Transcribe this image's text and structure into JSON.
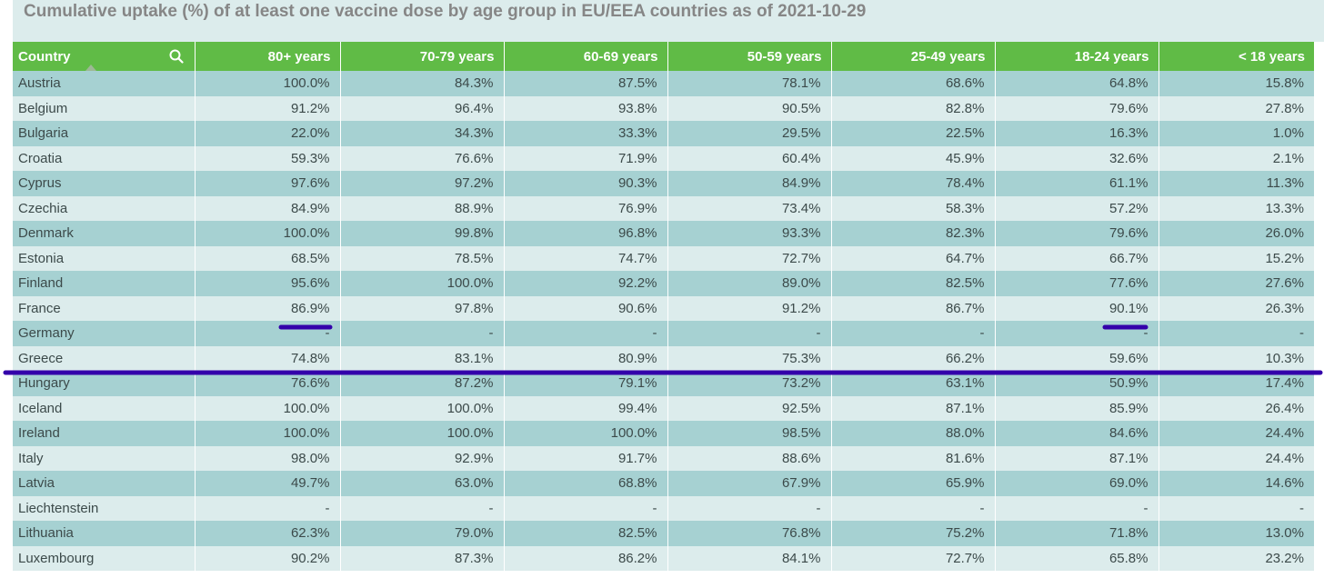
{
  "chart_data": {
    "type": "table",
    "title": "Cumulative uptake (%) of at least one vaccine dose by age group in EU/EEA countries as of 2021-10-29",
    "columns": [
      "Country",
      "80+ years",
      "70-79 years",
      "60-69 years",
      "50-59 years",
      "25-49 years",
      "18-24 years",
      "< 18 years"
    ],
    "rows": [
      [
        "Austria",
        "100.0%",
        "84.3%",
        "87.5%",
        "78.1%",
        "68.6%",
        "64.8%",
        "15.8%"
      ],
      [
        "Belgium",
        "91.2%",
        "96.4%",
        "93.8%",
        "90.5%",
        "82.8%",
        "79.6%",
        "27.8%"
      ],
      [
        "Bulgaria",
        "22.0%",
        "34.3%",
        "33.3%",
        "29.5%",
        "22.5%",
        "16.3%",
        "1.0%"
      ],
      [
        "Croatia",
        "59.3%",
        "76.6%",
        "71.9%",
        "60.4%",
        "45.9%",
        "32.6%",
        "2.1%"
      ],
      [
        "Cyprus",
        "97.6%",
        "97.2%",
        "90.3%",
        "84.9%",
        "78.4%",
        "61.1%",
        "11.3%"
      ],
      [
        "Czechia",
        "84.9%",
        "88.9%",
        "76.9%",
        "73.4%",
        "58.3%",
        "57.2%",
        "13.3%"
      ],
      [
        "Denmark",
        "100.0%",
        "99.8%",
        "96.8%",
        "93.3%",
        "82.3%",
        "79.6%",
        "26.0%"
      ],
      [
        "Estonia",
        "68.5%",
        "78.5%",
        "74.7%",
        "72.7%",
        "64.7%",
        "66.7%",
        "15.2%"
      ],
      [
        "Finland",
        "95.6%",
        "100.0%",
        "92.2%",
        "89.0%",
        "82.5%",
        "77.6%",
        "27.6%"
      ],
      [
        "France",
        "86.9%",
        "97.8%",
        "90.6%",
        "91.2%",
        "86.7%",
        "90.1%",
        "26.3%"
      ],
      [
        "Germany",
        "-",
        "-",
        "-",
        "-",
        "-",
        "-",
        "-"
      ],
      [
        "Greece",
        "74.8%",
        "83.1%",
        "80.9%",
        "75.3%",
        "66.2%",
        "59.6%",
        "10.3%"
      ],
      [
        "Hungary",
        "76.6%",
        "87.2%",
        "79.1%",
        "73.2%",
        "63.1%",
        "50.9%",
        "17.4%"
      ],
      [
        "Iceland",
        "100.0%",
        "100.0%",
        "99.4%",
        "92.5%",
        "87.1%",
        "85.9%",
        "26.4%"
      ],
      [
        "Ireland",
        "100.0%",
        "100.0%",
        "100.0%",
        "98.5%",
        "88.0%",
        "84.6%",
        "24.4%"
      ],
      [
        "Italy",
        "98.0%",
        "92.9%",
        "91.7%",
        "88.6%",
        "81.6%",
        "87.1%",
        "24.4%"
      ],
      [
        "Latvia",
        "49.7%",
        "63.0%",
        "68.8%",
        "67.9%",
        "65.9%",
        "69.0%",
        "14.6%"
      ],
      [
        "Liechtenstein",
        "-",
        "-",
        "-",
        "-",
        "-",
        "-",
        "-"
      ],
      [
        "Lithuania",
        "62.3%",
        "79.0%",
        "82.5%",
        "76.8%",
        "75.2%",
        "71.8%",
        "13.0%"
      ],
      [
        "Luxembourg",
        "90.2%",
        "87.3%",
        "86.2%",
        "84.1%",
        "72.7%",
        "65.8%",
        "23.2%"
      ]
    ]
  },
  "colors": {
    "header_bg": "#60bb46",
    "row_odd": "#a6d1d2",
    "row_even": "#dcecec",
    "annotation": "#3300aa"
  },
  "icons": {
    "search": "search-icon",
    "sort": "sort-ascending-icon"
  }
}
